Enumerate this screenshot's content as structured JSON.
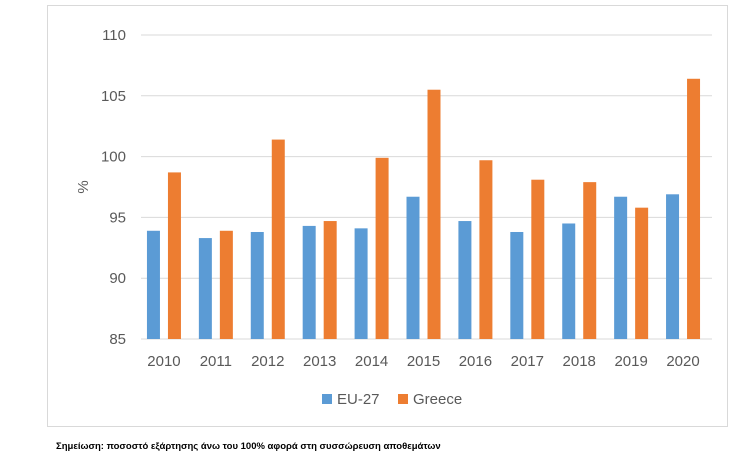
{
  "chart_data": {
    "type": "bar",
    "title": "",
    "xlabel": "",
    "ylabel": "%",
    "ylim": [
      85,
      110
    ],
    "yticks": [
      85,
      90,
      95,
      100,
      105,
      110
    ],
    "grid": "horizontal",
    "legend_position": "bottom",
    "categories": [
      "2010",
      "2011",
      "2012",
      "2013",
      "2014",
      "2015",
      "2016",
      "2017",
      "2018",
      "2019",
      "2020"
    ],
    "series": [
      {
        "name": "EU-27",
        "color": "#5b9bd5",
        "values": [
          93.9,
          93.3,
          93.8,
          94.3,
          94.1,
          96.7,
          94.7,
          93.8,
          94.5,
          96.7,
          96.9
        ]
      },
      {
        "name": "Greece",
        "color": "#ed7d31",
        "values": [
          98.7,
          93.9,
          101.4,
          94.7,
          99.9,
          105.5,
          99.7,
          98.1,
          97.9,
          95.8,
          106.4
        ]
      }
    ]
  },
  "note": "Σημείωση: ποσοστό εξάρτησης άνω του 100% αφορά στη συσσώρευση αποθεμάτων"
}
